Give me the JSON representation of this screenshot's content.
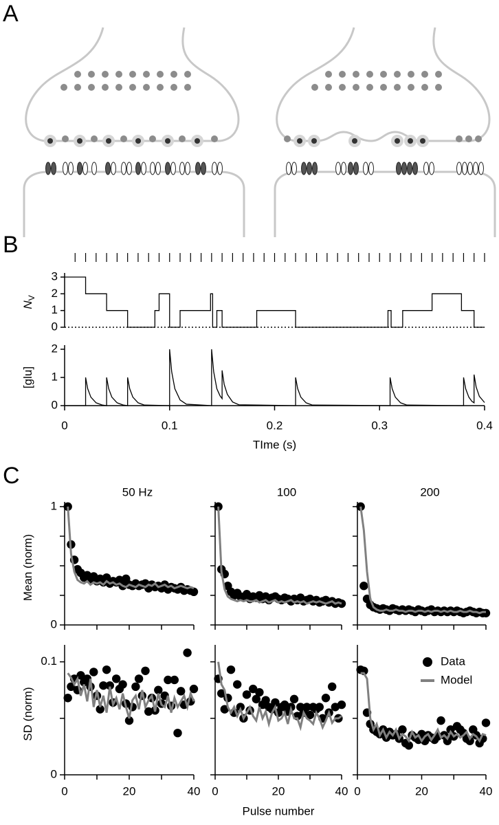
{
  "figure_labels": [
    "A",
    "B",
    "C"
  ],
  "chart_data": [
    {
      "type": "line",
      "ylabel": "N",
      "ylabel_sub": "V",
      "xlim": [
        0,
        0.4
      ],
      "ylim": [
        0,
        3
      ],
      "yticks": [
        0,
        1,
        2,
        3
      ],
      "stimulus": [
        0.01,
        0.02,
        0.03,
        0.04,
        0.05,
        0.06,
        0.07,
        0.08,
        0.09,
        0.1,
        0.11,
        0.12,
        0.13,
        0.14,
        0.15,
        0.16,
        0.17,
        0.18,
        0.19,
        0.2,
        0.21,
        0.22,
        0.23,
        0.24,
        0.25,
        0.26,
        0.27,
        0.28,
        0.29,
        0.3,
        0.31,
        0.32,
        0.33,
        0.34,
        0.35,
        0.36,
        0.37,
        0.38,
        0.39,
        0.4
      ],
      "x": [
        0,
        0.02,
        0.02,
        0.04,
        0.04,
        0.06,
        0.06,
        0.086,
        0.086,
        0.09,
        0.09,
        0.1,
        0.1,
        0.11,
        0.11,
        0.139,
        0.139,
        0.141,
        0.141,
        0.145,
        0.145,
        0.15,
        0.15,
        0.183,
        0.183,
        0.22,
        0.22,
        0.308,
        0.308,
        0.311,
        0.311,
        0.322,
        0.322,
        0.35,
        0.35,
        0.378,
        0.378,
        0.39,
        0.39,
        0.4
      ],
      "series": [
        {
          "color": "#000000",
          "values": [
            3,
            3,
            2,
            2,
            1,
            1,
            0,
            0,
            1,
            1,
            2,
            2,
            0,
            0,
            1,
            1,
            2,
            2,
            0,
            0,
            1,
            1,
            0,
            0,
            1,
            1,
            0,
            0,
            1,
            1,
            0,
            0,
            1,
            1,
            2,
            2,
            1,
            1,
            0,
            0
          ]
        }
      ]
    },
    {
      "type": "line",
      "ylabel": "[glu]",
      "xlabel": "TIme (s)",
      "xlim": [
        0,
        0.4
      ],
      "xticks": [
        0,
        0.1,
        0.2,
        0.3,
        0.4
      ],
      "ylim": [
        0,
        2
      ],
      "yticks": [
        0,
        1,
        2
      ],
      "x": [
        0,
        0.02,
        0.02,
        0.022,
        0.025,
        0.03,
        0.036,
        0.04,
        0.04,
        0.042,
        0.045,
        0.05,
        0.056,
        0.06,
        0.06,
        0.062,
        0.065,
        0.07,
        0.076,
        0.1,
        0.1,
        0.102,
        0.105,
        0.11,
        0.116,
        0.14,
        0.14,
        0.142,
        0.145,
        0.148,
        0.15,
        0.15,
        0.152,
        0.155,
        0.16,
        0.166,
        0.22,
        0.22,
        0.222,
        0.225,
        0.23,
        0.236,
        0.31,
        0.31,
        0.312,
        0.315,
        0.32,
        0.326,
        0.38,
        0.38,
        0.382,
        0.385,
        0.388,
        0.39,
        0.39,
        0.392,
        0.395,
        0.4
      ],
      "series": [
        {
          "color": "#000000",
          "values": [
            0,
            0,
            1,
            0.6,
            0.3,
            0.1,
            0.02,
            0,
            1,
            0.6,
            0.3,
            0.1,
            0.02,
            0,
            1,
            0.6,
            0.3,
            0.1,
            0.02,
            0,
            2,
            1.2,
            0.6,
            0.2,
            0.05,
            0,
            2,
            1.2,
            0.6,
            0.35,
            0.25,
            1.25,
            0.75,
            0.4,
            0.13,
            0.03,
            0,
            1,
            0.6,
            0.3,
            0.1,
            0.02,
            0,
            1,
            0.6,
            0.3,
            0.1,
            0.02,
            0,
            1,
            0.6,
            0.3,
            0.15,
            0.1,
            1.1,
            0.66,
            0.33,
            0.11
          ]
        }
      ]
    },
    {
      "type": "scatter",
      "title": "50 Hz",
      "ylabel": "Mean (norm)",
      "xlim": [
        0,
        40
      ],
      "xminor": [
        0,
        10,
        20,
        30,
        40
      ],
      "ylim": [
        0,
        1.04
      ],
      "yticks": [
        0,
        1
      ],
      "yminor": [
        0.25,
        0.5,
        0.75
      ],
      "x": [
        1,
        2,
        3,
        4,
        5,
        6,
        7,
        8,
        9,
        10,
        11,
        12,
        13,
        14,
        15,
        16,
        17,
        18,
        19,
        20,
        21,
        22,
        23,
        24,
        25,
        26,
        27,
        28,
        29,
        30,
        31,
        32,
        33,
        34,
        35,
        36,
        37,
        38,
        39,
        40
      ],
      "series": [
        {
          "color": "#000000",
          "mode": "markers",
          "values": [
            1,
            0.68,
            0.55,
            0.47,
            0.44,
            0.4,
            0.42,
            0.38,
            0.41,
            0.37,
            0.39,
            0.36,
            0.4,
            0.35,
            0.37,
            0.36,
            0.38,
            0.33,
            0.39,
            0.34,
            0.33,
            0.35,
            0.33,
            0.34,
            0.35,
            0.31,
            0.34,
            0.32,
            0.33,
            0.31,
            0.34,
            0.3,
            0.32,
            0.31,
            0.3,
            0.32,
            0.29,
            0.3,
            0.29,
            0.28
          ]
        },
        {
          "color": "#808080",
          "mode": "line",
          "values": [
            1,
            0.6,
            0.45,
            0.38,
            0.36,
            0.35,
            0.37,
            0.34,
            0.36,
            0.35,
            0.36,
            0.34,
            0.37,
            0.35,
            0.36,
            0.34,
            0.35,
            0.33,
            0.32,
            0.34,
            0.33,
            0.32,
            0.34,
            0.33,
            0.32,
            0.34,
            0.33,
            0.35,
            0.32,
            0.33,
            0.34,
            0.32,
            0.33,
            0.31,
            0.32,
            0.33,
            0.32,
            0.31,
            0.32,
            0.31
          ]
        }
      ]
    },
    {
      "type": "scatter",
      "title": "100",
      "xlim": [
        0,
        40
      ],
      "xminor": [
        0,
        10,
        20,
        30,
        40
      ],
      "ylim": [
        0,
        1.04
      ],
      "yminor": [
        0,
        0.25,
        0.5,
        0.75,
        1
      ],
      "x": [
        1,
        2,
        3,
        4,
        5,
        6,
        7,
        8,
        9,
        10,
        11,
        12,
        13,
        14,
        15,
        16,
        17,
        18,
        19,
        20,
        21,
        22,
        23,
        24,
        25,
        26,
        27,
        28,
        29,
        30,
        31,
        32,
        33,
        34,
        35,
        36,
        37,
        38,
        39,
        40
      ],
      "series": [
        {
          "color": "#000000",
          "mode": "markers",
          "values": [
            1,
            0.47,
            0.43,
            0.33,
            0.28,
            0.25,
            0.27,
            0.24,
            0.23,
            0.26,
            0.22,
            0.24,
            0.23,
            0.25,
            0.22,
            0.24,
            0.21,
            0.23,
            0.24,
            0.22,
            0.21,
            0.23,
            0.22,
            0.2,
            0.22,
            0.21,
            0.23,
            0.2,
            0.21,
            0.22,
            0.2,
            0.21,
            0.19,
            0.2,
            0.21,
            0.19,
            0.2,
            0.18,
            0.19,
            0.18
          ]
        },
        {
          "color": "#808080",
          "mode": "line",
          "values": [
            1,
            0.45,
            0.3,
            0.24,
            0.22,
            0.21,
            0.2,
            0.21,
            0.2,
            0.21,
            0.2,
            0.2,
            0.21,
            0.19,
            0.2,
            0.21,
            0.19,
            0.2,
            0.21,
            0.19,
            0.2,
            0.19,
            0.2,
            0.21,
            0.19,
            0.2,
            0.19,
            0.2,
            0.18,
            0.19,
            0.2,
            0.19,
            0.2,
            0.19,
            0.18,
            0.19,
            0.2,
            0.18,
            0.19,
            0.18
          ]
        }
      ]
    },
    {
      "type": "scatter",
      "title": "200",
      "xlim": [
        0,
        40
      ],
      "xminor": [
        0,
        10,
        20,
        30,
        40
      ],
      "ylim": [
        0,
        1.04
      ],
      "yminor": [
        0,
        0.25,
        0.5,
        0.75,
        1
      ],
      "x": [
        1,
        2,
        3,
        4,
        5,
        6,
        7,
        8,
        9,
        10,
        11,
        12,
        13,
        14,
        15,
        16,
        17,
        18,
        19,
        20,
        21,
        22,
        23,
        24,
        25,
        26,
        27,
        28,
        29,
        30,
        31,
        32,
        33,
        34,
        35,
        36,
        37,
        38,
        39,
        40
      ],
      "series": [
        {
          "color": "#000000",
          "mode": "markers",
          "values": [
            1,
            0.33,
            0.22,
            0.17,
            0.15,
            0.14,
            0.13,
            0.14,
            0.13,
            0.12,
            0.14,
            0.13,
            0.12,
            0.13,
            0.12,
            0.13,
            0.12,
            0.11,
            0.13,
            0.12,
            0.11,
            0.12,
            0.13,
            0.11,
            0.12,
            0.11,
            0.12,
            0.11,
            0.12,
            0.11,
            0.12,
            0.11,
            0.1,
            0.11,
            0.12,
            0.11,
            0.1,
            0.11,
            0.1,
            0.1
          ]
        },
        {
          "color": "#808080",
          "mode": "line",
          "values": [
            1,
            0.8,
            0.45,
            0.22,
            0.15,
            0.13,
            0.12,
            0.12,
            0.13,
            0.12,
            0.12,
            0.13,
            0.12,
            0.12,
            0.11,
            0.12,
            0.12,
            0.11,
            0.12,
            0.12,
            0.11,
            0.12,
            0.11,
            0.12,
            0.12,
            0.11,
            0.12,
            0.11,
            0.12,
            0.11,
            0.11,
            0.12,
            0.11,
            0.11,
            0.12,
            0.11,
            0.11,
            0.1,
            0.11,
            0.11
          ]
        }
      ]
    },
    {
      "type": "scatter",
      "ylabel": "SD (norm)",
      "xlim": [
        0,
        40
      ],
      "xticks": [
        0,
        20,
        40
      ],
      "xminor": [
        10,
        30
      ],
      "ylim": [
        0,
        0.115
      ],
      "yticks": [
        0,
        0.1
      ],
      "yminor": [
        0.05
      ],
      "x": [
        1,
        2,
        3,
        4,
        5,
        6,
        7,
        8,
        9,
        10,
        11,
        12,
        13,
        14,
        15,
        16,
        17,
        18,
        19,
        20,
        21,
        22,
        23,
        24,
        25,
        26,
        27,
        28,
        29,
        30,
        31,
        32,
        33,
        34,
        35,
        36,
        37,
        38,
        39,
        40
      ],
      "series": [
        {
          "color": "#000000",
          "mode": "markers",
          "values": [
            0.068,
            0.078,
            0.085,
            0.075,
            0.088,
            0.082,
            0.085,
            0.078,
            0.091,
            0.07,
            0.058,
            0.079,
            0.093,
            0.079,
            0.064,
            0.085,
            0.076,
            0.08,
            0.063,
            0.048,
            0.06,
            0.078,
            0.085,
            0.07,
            0.092,
            0.056,
            0.068,
            0.057,
            0.075,
            0.063,
            0.07,
            0.084,
            0.061,
            0.084,
            0.037,
            0.074,
            0.062,
            0.108,
            0.065,
            0.076
          ]
        },
        {
          "color": "#808080",
          "mode": "line",
          "values": [
            0.09,
            0.086,
            0.08,
            0.085,
            0.07,
            0.08,
            0.065,
            0.085,
            0.06,
            0.075,
            0.06,
            0.07,
            0.055,
            0.078,
            0.062,
            0.068,
            0.058,
            0.072,
            0.06,
            0.05,
            0.066,
            0.07,
            0.058,
            0.075,
            0.06,
            0.066,
            0.07,
            0.056,
            0.072,
            0.062,
            0.06,
            0.07,
            0.055,
            0.068,
            0.06,
            0.065,
            0.07,
            0.06,
            0.072,
            0.065
          ]
        }
      ]
    },
    {
      "type": "scatter",
      "xlabel": "Pulse number",
      "xlim": [
        0,
        40
      ],
      "xticks": [
        0,
        20,
        40
      ],
      "xminor": [
        10,
        30
      ],
      "ylim": [
        0,
        0.115
      ],
      "yminor": [
        0,
        0.05,
        0.1
      ],
      "x": [
        1,
        2,
        3,
        4,
        5,
        6,
        7,
        8,
        9,
        10,
        11,
        12,
        13,
        14,
        15,
        16,
        17,
        18,
        19,
        20,
        21,
        22,
        23,
        24,
        25,
        26,
        27,
        28,
        29,
        30,
        31,
        32,
        33,
        34,
        35,
        36,
        37,
        38,
        39,
        40
      ],
      "series": [
        {
          "color": "#000000",
          "mode": "markers",
          "values": [
            0.085,
            0.072,
            0.058,
            0.068,
            0.093,
            0.055,
            0.08,
            0.06,
            0.05,
            0.071,
            0.057,
            0.076,
            0.067,
            0.073,
            0.062,
            0.066,
            0.06,
            0.058,
            0.064,
            0.055,
            0.06,
            0.062,
            0.056,
            0.06,
            0.067,
            0.052,
            0.06,
            0.055,
            0.06,
            0.053,
            0.06,
            0.058,
            0.06,
            0.05,
            0.068,
            0.055,
            0.078,
            0.06,
            0.05,
            0.062
          ]
        },
        {
          "color": "#808080",
          "mode": "line",
          "values": [
            0.1,
            0.08,
            0.075,
            0.06,
            0.055,
            0.06,
            0.052,
            0.058,
            0.05,
            0.055,
            0.06,
            0.052,
            0.048,
            0.06,
            0.05,
            0.056,
            0.045,
            0.055,
            0.06,
            0.048,
            0.05,
            0.055,
            0.045,
            0.058,
            0.05,
            0.05,
            0.042,
            0.055,
            0.05,
            0.048,
            0.045,
            0.055,
            0.05,
            0.042,
            0.048,
            0.055,
            0.046,
            0.05,
            0.05,
            0.052
          ]
        }
      ]
    },
    {
      "type": "scatter",
      "xlim": [
        0,
        40
      ],
      "xticks": [
        0,
        20,
        40
      ],
      "xminor": [
        10,
        30
      ],
      "ylim": [
        0,
        0.115
      ],
      "yminor": [
        0,
        0.05,
        0.1
      ],
      "legend": "upper right",
      "x": [
        1,
        2,
        3,
        4,
        5,
        6,
        7,
        8,
        9,
        10,
        11,
        12,
        13,
        14,
        15,
        16,
        17,
        18,
        19,
        20,
        21,
        22,
        23,
        24,
        25,
        26,
        27,
        28,
        29,
        30,
        31,
        32,
        33,
        34,
        35,
        36,
        37,
        38,
        39,
        40
      ],
      "series": [
        {
          "name": "Data",
          "color": "#000000",
          "mode": "markers",
          "values": [
            0.093,
            0.092,
            0.055,
            0.045,
            0.04,
            0.038,
            0.036,
            0.04,
            0.033,
            0.038,
            0.035,
            0.036,
            0.032,
            0.04,
            0.028,
            0.026,
            0.035,
            0.033,
            0.031,
            0.036,
            0.03,
            0.035,
            0.033,
            0.031,
            0.034,
            0.048,
            0.035,
            0.03,
            0.04,
            0.034,
            0.043,
            0.04,
            0.037,
            0.032,
            0.03,
            0.04,
            0.035,
            0.028,
            0.032,
            0.046
          ]
        },
        {
          "name": "Model",
          "color": "#808080",
          "mode": "line",
          "values": [
            0.09,
            0.09,
            0.085,
            0.05,
            0.04,
            0.045,
            0.035,
            0.04,
            0.033,
            0.038,
            0.035,
            0.04,
            0.032,
            0.036,
            0.034,
            0.03,
            0.038,
            0.033,
            0.035,
            0.03,
            0.034,
            0.036,
            0.031,
            0.035,
            0.04,
            0.033,
            0.035,
            0.032,
            0.038,
            0.034,
            0.036,
            0.033,
            0.035,
            0.038,
            0.032,
            0.036,
            0.034,
            0.03,
            0.036,
            0.035
          ]
        }
      ]
    }
  ]
}
